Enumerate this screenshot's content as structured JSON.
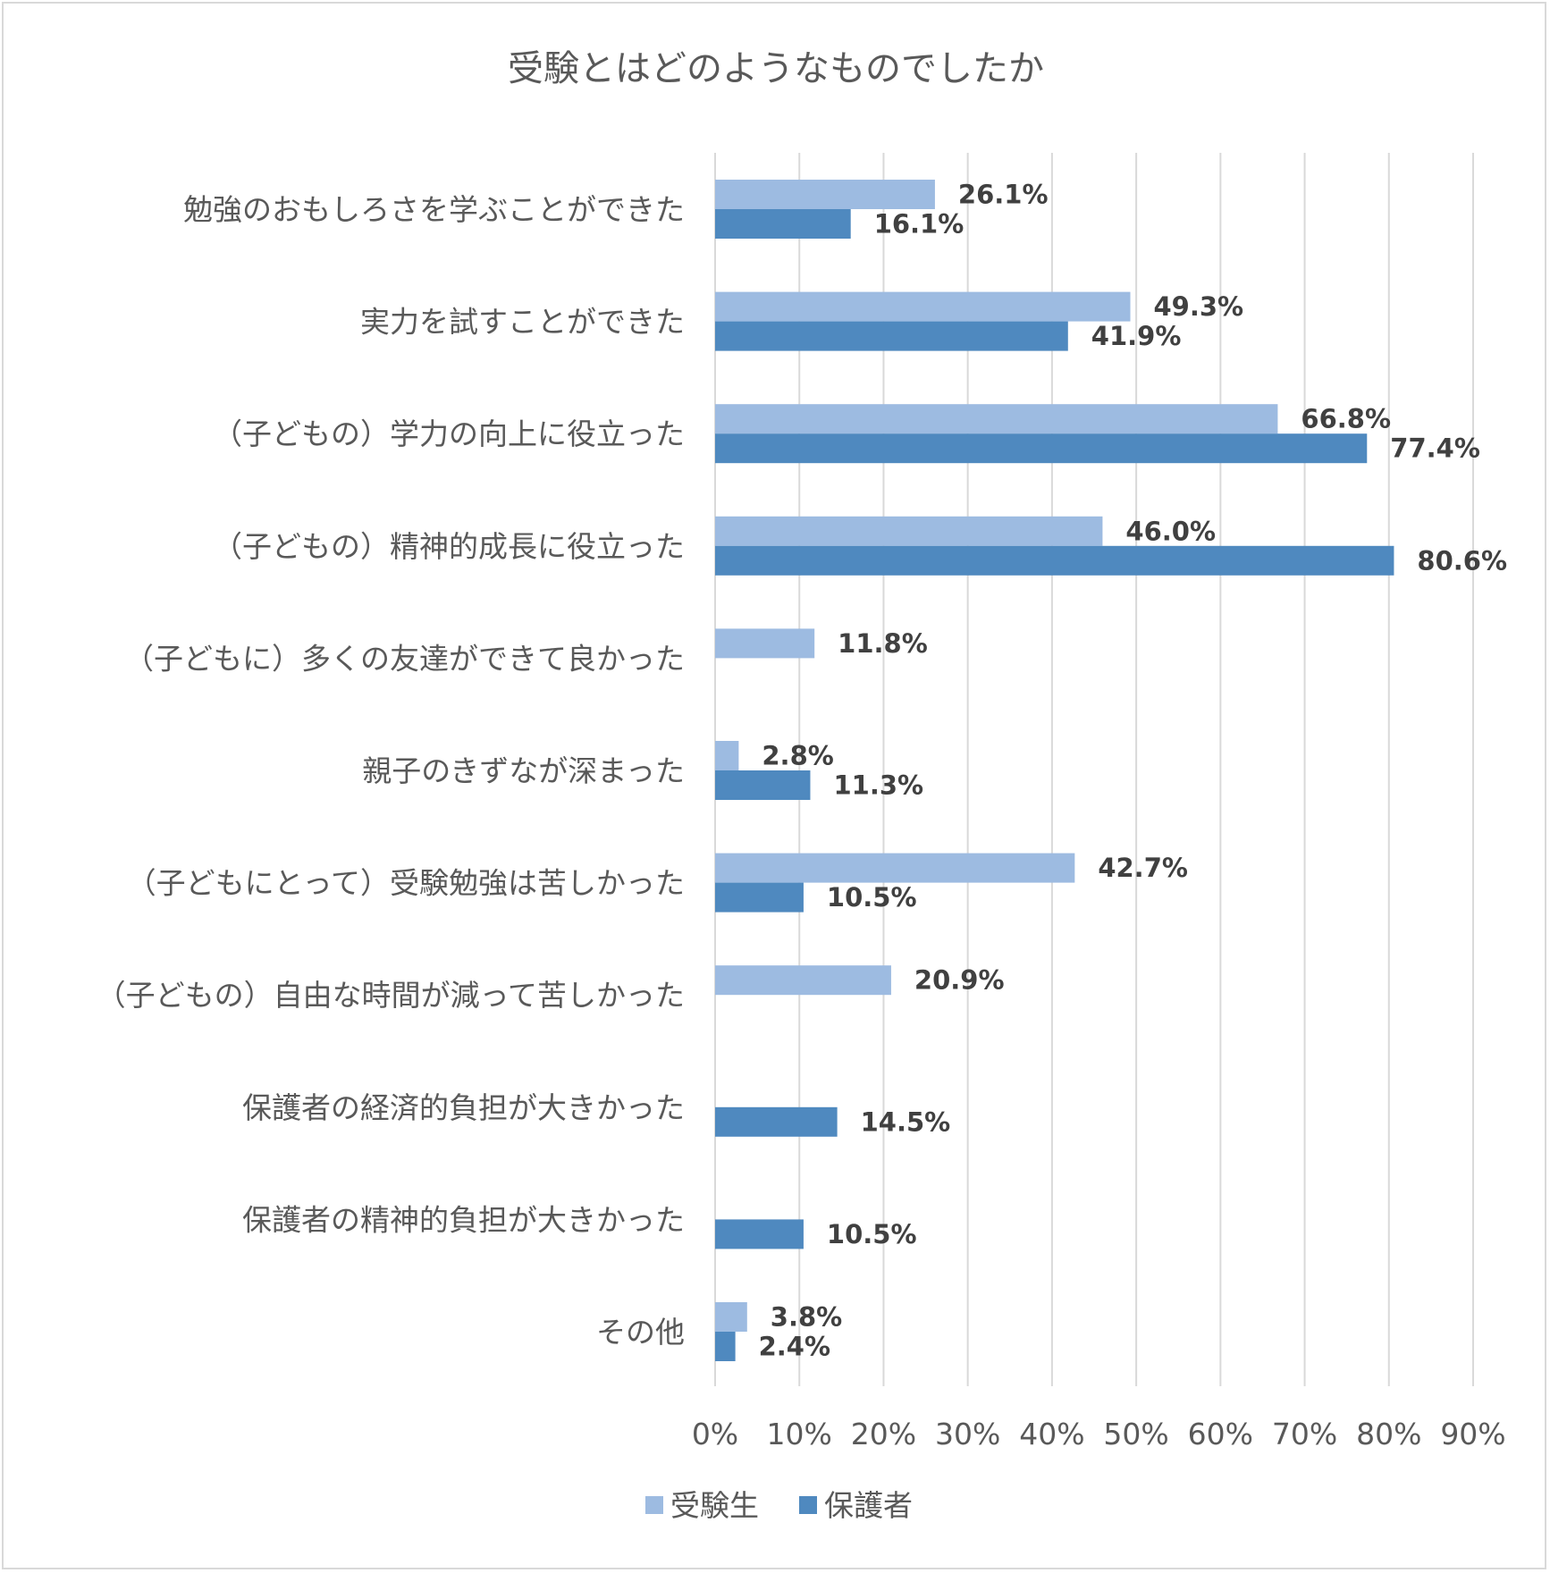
{
  "chart_data": {
    "type": "bar",
    "orientation": "horizontal",
    "title": "受験とはどのようなものでしたか",
    "xlabel": "",
    "ylabel": "",
    "xlim": [
      0,
      90
    ],
    "xticks": [
      0,
      10,
      20,
      30,
      40,
      50,
      60,
      70,
      80,
      90
    ],
    "tick_suffix": "%",
    "grid": "vertical",
    "legend_position": "bottom",
    "categories": [
      "勉強のおもしろさを学ぶことができた",
      "実力を試すことができた",
      "（子どもの）学力の向上に役立った",
      "（子どもの）精神的成長に役立った",
      "（子どもに）多くの友達ができて良かった",
      "親子のきずなが深まった",
      "（子どもにとって）受験勉強は苦しかった",
      "（子どもの）自由な時間が減って苦しかった",
      "保護者の経済的負担が大きかった",
      "保護者の精神的負担が大きかった",
      "その他"
    ],
    "series": [
      {
        "name": "受験生",
        "color": "#9dbbe1",
        "values": [
          26.1,
          49.3,
          66.8,
          46.0,
          11.8,
          2.8,
          42.7,
          20.9,
          null,
          null,
          3.8
        ],
        "labels": [
          "26.1%",
          "49.3%",
          "66.8%",
          "46.0%",
          "11.8%",
          "2.8%",
          "42.7%",
          "20.9%",
          "",
          "",
          "3.8%"
        ]
      },
      {
        "name": "保護者",
        "color": "#4f89bf",
        "values": [
          16.1,
          41.9,
          77.4,
          80.6,
          null,
          11.3,
          10.5,
          null,
          14.5,
          10.5,
          2.4
        ],
        "labels": [
          "16.1%",
          "41.9%",
          "77.4%",
          "80.6%",
          "",
          "11.3%",
          "10.5%",
          "",
          "14.5%",
          "10.5%",
          "2.4%"
        ]
      }
    ]
  }
}
